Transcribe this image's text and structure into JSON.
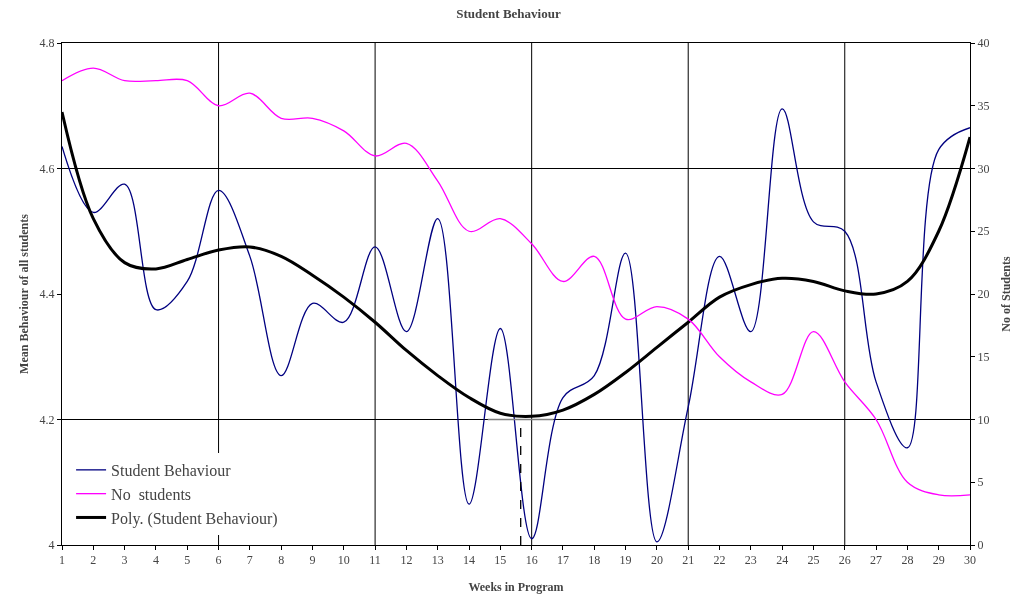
{
  "chart_data": {
    "type": "line",
    "title": "Student Behaviour",
    "xlabel": "Weeks in Program",
    "ylabel": "Mean Behaviour of all students",
    "y2label": "No of Students",
    "x": [
      1,
      2,
      3,
      4,
      5,
      6,
      7,
      8,
      9,
      10,
      11,
      12,
      13,
      14,
      15,
      16,
      17,
      18,
      19,
      20,
      21,
      22,
      23,
      24,
      25,
      26,
      27,
      28,
      29,
      30
    ],
    "series": [
      {
        "name": "Student Behaviour",
        "color": "#000080",
        "values": [
          4.635,
          4.53,
          4.575,
          4.375,
          4.42,
          4.565,
          4.46,
          4.27,
          4.385,
          4.355,
          4.475,
          4.34,
          4.52,
          4.065,
          4.345,
          4.01,
          4.235,
          4.27,
          4.465,
          4.005,
          4.22,
          4.46,
          4.34,
          4.695,
          4.515,
          4.5,
          4.26,
          4.155,
          4.63,
          4.665
        ]
      },
      {
        "name": "No  students",
        "color": "#ff00ff",
        "axis": "y2",
        "values": [
          37,
          38,
          37,
          37,
          37,
          35,
          36,
          34,
          34,
          33,
          31,
          32,
          29,
          25,
          26,
          24,
          21,
          23,
          18,
          19,
          18,
          15,
          13,
          12,
          17,
          13,
          10,
          5,
          4,
          4
        ]
      },
      {
        "name": "Poly. (Student Behaviour)",
        "color": "#000000",
        "values": [
          4.69,
          4.52,
          4.45,
          4.44,
          4.455,
          4.47,
          4.475,
          4.46,
          4.43,
          4.395,
          4.355,
          4.31,
          4.27,
          4.235,
          4.21,
          4.205,
          4.215,
          4.24,
          4.275,
          4.315,
          4.355,
          4.395,
          4.415,
          4.425,
          4.42,
          4.405,
          4.4,
          4.42,
          4.5,
          4.65
        ]
      },
      {
        "color": "#000000",
        "line_style": "dashed",
        "x": [
          15.65,
          15.65
        ],
        "values": [
          4,
          4.2
        ]
      },
      {
        "color": "#808080",
        "x": [
          14.6,
          16.7
        ],
        "values": [
          4.2,
          4.2
        ]
      }
    ],
    "xlim": [
      1,
      30
    ],
    "xticks": [
      1,
      2,
      3,
      4,
      5,
      6,
      7,
      8,
      9,
      10,
      11,
      12,
      13,
      14,
      15,
      16,
      17,
      18,
      19,
      20,
      21,
      22,
      23,
      24,
      25,
      26,
      27,
      28,
      29,
      30
    ],
    "ylim": [
      4,
      4.8
    ],
    "yticks": [
      4,
      4.2,
      4.4,
      4.6,
      4.8
    ],
    "y2lim": [
      0,
      40
    ],
    "y2ticks": [
      0,
      5,
      10,
      15,
      20,
      25,
      30,
      35,
      40
    ],
    "grid": true,
    "legend": "bottom left",
    "marker": "none"
  }
}
